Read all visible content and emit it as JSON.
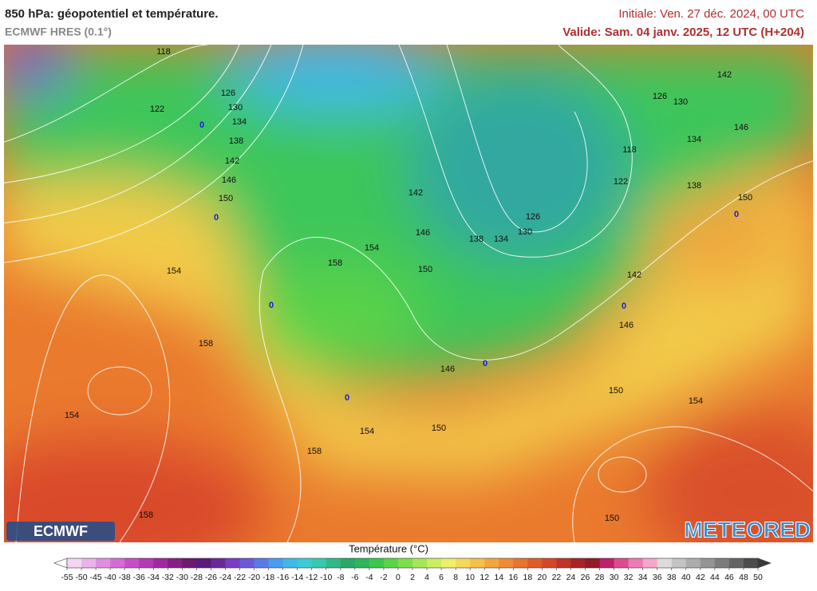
{
  "header": {
    "title": "850 hPa: géopotentiel et température.",
    "model": "ECMWF HRES (0.1°)",
    "initial": "Initiale: Ven. 27 déc. 2024, 00 UTC",
    "valid": "Valide: Sam. 04 janv. 2025, 12 UTC (H+204)"
  },
  "map": {
    "geopotential_labels": [
      118,
      122,
      126,
      130,
      134,
      138,
      142,
      146,
      150,
      154,
      158,
      154,
      158,
      158,
      154,
      150,
      146,
      142,
      138,
      134,
      130,
      126,
      118,
      122,
      126,
      130,
      142,
      146,
      134,
      138,
      150,
      142,
      146,
      146,
      150,
      154,
      154,
      150,
      158,
      150
    ],
    "temperature_labels": [
      0,
      0,
      0,
      0,
      0,
      0,
      0
    ]
  },
  "logos": {
    "left": "ECMWF",
    "right": "METEORED"
  },
  "colorbar": {
    "title": "Température (°C)",
    "ticks": [
      -55,
      -50,
      -45,
      -40,
      -38,
      -36,
      -34,
      -32,
      -30,
      -28,
      -26,
      -24,
      -22,
      -20,
      -18,
      -16,
      -14,
      -12,
      -10,
      -8,
      -6,
      -4,
      -2,
      0,
      2,
      4,
      6,
      8,
      10,
      12,
      14,
      16,
      18,
      20,
      22,
      24,
      26,
      28,
      30,
      32,
      34,
      36,
      38,
      40,
      42,
      44,
      46,
      48,
      50
    ],
    "colors": [
      "#f3d6f3",
      "#eab3ea",
      "#e08fe0",
      "#d46cd4",
      "#c64fc6",
      "#b53ab5",
      "#9f2a9f",
      "#861f86",
      "#6b1a6e",
      "#5a1c7a",
      "#6a2a9a",
      "#7a3cc0",
      "#6a5ad8",
      "#5a7ae6",
      "#4a9cec",
      "#40b8e8",
      "#3ccbd6",
      "#38c8b0",
      "#30b888",
      "#2aa868",
      "#2eb65a",
      "#3cc64c",
      "#5ad24a",
      "#7ede4e",
      "#a6e658",
      "#ccec62",
      "#eeee6a",
      "#f6d85a",
      "#f6c04a",
      "#f2a63e",
      "#ee8c36",
      "#e8742e",
      "#e05c2a",
      "#d44828",
      "#c03426",
      "#a82424",
      "#901c2a",
      "#c0206a",
      "#dc4a92",
      "#ec7ab4",
      "#f4a6cc",
      "#dcdcdc",
      "#c4c4c4",
      "#acacac",
      "#949494",
      "#7c7c7c",
      "#646464",
      "#4c4c4c"
    ]
  }
}
